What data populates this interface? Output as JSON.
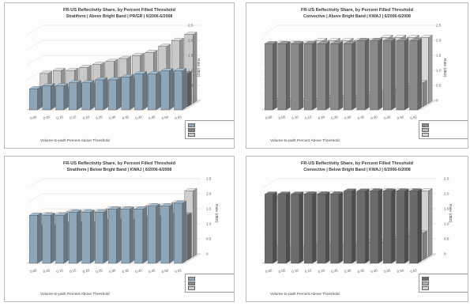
{
  "chart_data": [
    {
      "type": "bar",
      "title": "FR-US Reflectivity Share, by Percent Filled Threshold",
      "subtitle": "Stratiform | Above Bright Band | PR/GR | 6/2006-6/2008",
      "xlabel": "Volume-to-path Percent Above Threshold",
      "ylabel": "Rate (dBZ)",
      "categories": [
        "0.00",
        "0.05",
        "0.10",
        "0.15",
        "0.20",
        "0.25",
        "0.30",
        "0.35",
        "0.40",
        "0.45",
        "0.50",
        "0.55"
      ],
      "ylim": [
        0,
        2.5
      ],
      "yticks": [
        "0",
        "0.5",
        "1.0",
        "1.5",
        "2.0",
        "2.5"
      ],
      "series": [
        {
          "name": "",
          "color": "#8fa6b8",
          "values": [
            0.7,
            0.8,
            0.8,
            0.9,
            0.9,
            1.0,
            1.0,
            1.1,
            1.2,
            1.2,
            1.3,
            1.3
          ]
        },
        {
          "name": "",
          "color": "#7f7f7f",
          "values": [
            0.6,
            0.6,
            0.6,
            0.7,
            0.7,
            0.8,
            0.9,
            0.9,
            1.0,
            1.0,
            1.1,
            1.1
          ]
        },
        {
          "name": "",
          "color": "#c9c9c9",
          "values": [
            1.0,
            1.1,
            1.1,
            1.2,
            1.3,
            1.4,
            1.5,
            1.6,
            1.7,
            1.9,
            2.1,
            2.3
          ]
        }
      ]
    },
    {
      "type": "bar",
      "title": "FR-US Reflectivity Share, by Percent Filled Threshold",
      "subtitle": "Convective | Above Bright Band | KWAJ | 6/2006-6/2008",
      "xlabel": "Volume-to-path Percent Above Threshold",
      "ylabel": "Rate (dBZ)",
      "categories": [
        "0.00",
        "0.05",
        "0.10",
        "0.15",
        "0.20",
        "0.25",
        "0.30",
        "0.35",
        "0.40",
        "0.45",
        "0.50",
        "0.55"
      ],
      "ylim": [
        0,
        2.5
      ],
      "yticks": [
        "0",
        "0.5",
        "1.0",
        "1.5",
        "2.0",
        "2.5"
      ],
      "series": [
        {
          "name": "",
          "color": "#8a8a8a",
          "values": [
            2.2,
            2.2,
            2.2,
            2.2,
            2.2,
            2.2,
            2.2,
            2.3,
            2.3,
            2.3,
            2.3,
            2.3
          ]
        },
        {
          "name": "",
          "color": "#b8b8b8",
          "values": [
            0.2,
            0.2,
            0.2,
            0.2,
            0.3,
            0.3,
            0.3,
            0.4,
            0.5,
            0.6,
            0.7,
            0.8
          ]
        },
        {
          "name": "",
          "color": "#d6d6d6",
          "values": [
            2.0,
            2.0,
            2.0,
            2.1,
            2.1,
            2.1,
            2.1,
            2.1,
            2.2,
            2.2,
            2.2,
            2.2
          ]
        }
      ]
    },
    {
      "type": "bar",
      "title": "FR-US Reflectivity Share, by Percent Filled Threshold",
      "subtitle": "Stratiform | Below Bright Band | KWAJ | 6/2006-6/2008",
      "xlabel": "Volume-to-path Percent Above Threshold",
      "ylabel": "Rate (dBZ)",
      "categories": [
        "0.00",
        "0.05",
        "0.10",
        "0.15",
        "0.20",
        "0.25",
        "0.30",
        "0.35",
        "0.40",
        "0.45",
        "0.50",
        "0.55"
      ],
      "ylim": [
        0,
        2.5
      ],
      "yticks": [
        "0",
        "0.5",
        "1.0",
        "1.5",
        "2.0",
        "2.5"
      ],
      "series": [
        {
          "name": "",
          "color": "#8fa6b8",
          "values": [
            1.6,
            1.6,
            1.6,
            1.7,
            1.7,
            1.7,
            1.8,
            1.8,
            1.8,
            1.9,
            1.9,
            2.0
          ]
        },
        {
          "name": "",
          "color": "#8c8c8c",
          "values": [
            1.1,
            1.1,
            1.2,
            1.2,
            1.2,
            1.3,
            1.3,
            1.3,
            1.4,
            1.4,
            1.5,
            1.5
          ]
        },
        {
          "name": "",
          "color": "#cfcfcf",
          "values": [
            1.4,
            1.4,
            1.5,
            1.5,
            1.5,
            1.6,
            1.6,
            1.6,
            1.7,
            1.7,
            1.8,
            2.2
          ]
        }
      ]
    },
    {
      "type": "bar",
      "title": "FR-US Reflectivity Share, by Percent Filled Threshold",
      "subtitle": "Convective | Below Bright Band | KWAJ | 6/2006-6/2008",
      "xlabel": "Volume-to-path Percent Above Threshold",
      "ylabel": "Rate (dBZ)",
      "categories": [
        "0.00",
        "0.05",
        "0.10",
        "0.15",
        "0.20",
        "0.25",
        "0.30",
        "0.35",
        "0.40",
        "0.45",
        "0.50",
        "0.55"
      ],
      "ylim": [
        0,
        2.5
      ],
      "yticks": [
        "0",
        "0.5",
        "1.0",
        "1.5",
        "2.0",
        "2.5"
      ],
      "series": [
        {
          "name": "",
          "color": "#6b6b6b",
          "values": [
            2.3,
            2.3,
            2.3,
            2.3,
            2.3,
            2.3,
            2.4,
            2.4,
            2.4,
            2.4,
            2.4,
            2.4
          ]
        },
        {
          "name": "",
          "color": "#b0b0b0",
          "values": [
            0.4,
            0.4,
            0.4,
            0.5,
            0.5,
            0.5,
            0.5,
            0.6,
            0.6,
            0.7,
            0.8,
            0.9
          ]
        },
        {
          "name": "",
          "color": "#d2d2d2",
          "values": [
            2.0,
            2.0,
            2.1,
            2.1,
            2.1,
            2.1,
            2.1,
            2.2,
            2.2,
            2.2,
            2.2,
            2.2
          ]
        }
      ]
    }
  ]
}
